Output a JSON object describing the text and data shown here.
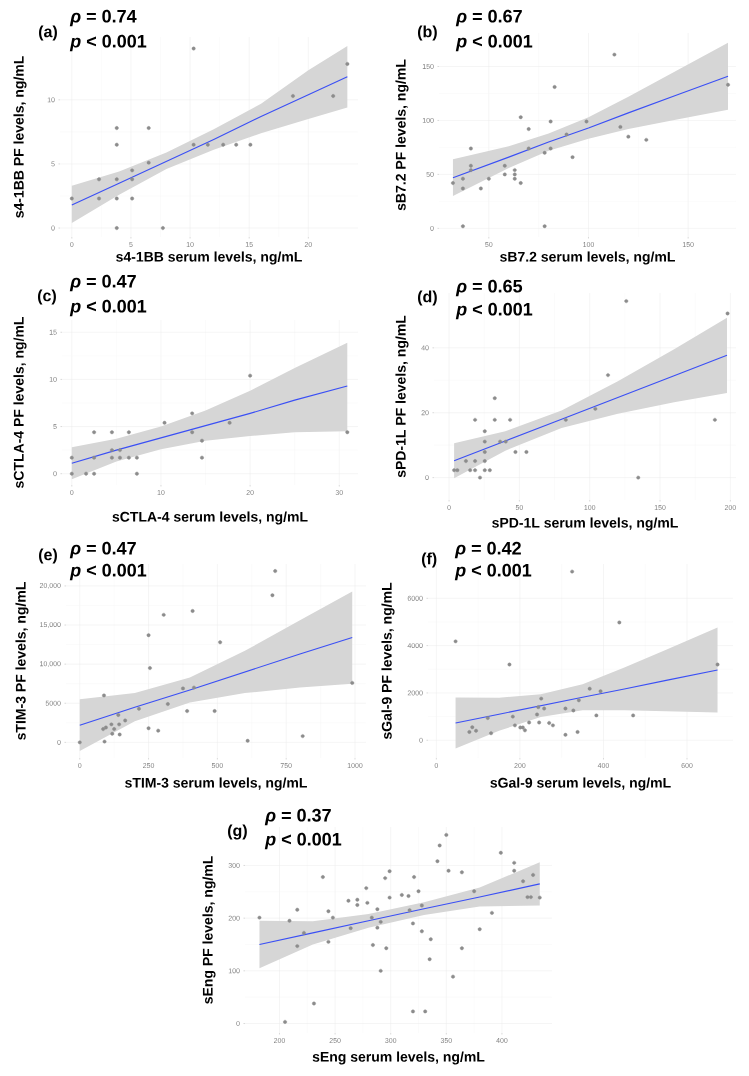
{
  "chart_data": [
    {
      "type": "scatter",
      "annotations": [
        "(a)",
        "*ρ* = 0.74",
        "*p* < 0.001"
      ],
      "xlabel": "s4-1BB serum levels, ng/mL",
      "ylabel": "s4-1BB PF levels, ng/mL",
      "xlim": [
        -1,
        24.2
      ],
      "ylim": [
        -0.7,
        14.9
      ],
      "xticks": [
        0,
        5,
        10,
        15,
        20
      ],
      "yticks": [
        0,
        5,
        10
      ],
      "grid": true,
      "series": [
        {
          "type": "scatter",
          "marker": "circle",
          "color": "#8c8c8c",
          "x": [
            0,
            2.3,
            2.3,
            3.8,
            3.8,
            3.8,
            3.8,
            3.8,
            5.1,
            5.1,
            5.1,
            6.5,
            6.5,
            7.7,
            10.3,
            10.3,
            11.5,
            12.8,
            13.9,
            15.1,
            18.7,
            22.1,
            23.3
          ],
          "values": [
            2.3,
            3.8,
            2.3,
            7.8,
            6.5,
            3.8,
            2.3,
            0,
            4.5,
            3.8,
            2.3,
            7.8,
            5.1,
            0,
            14.0,
            6.5,
            6.5,
            6.5,
            6.5,
            6.5,
            10.3,
            10.3,
            12.8
          ]
        },
        {
          "type": "line",
          "color": "#3a4ff5",
          "x": [
            0,
            4,
            8,
            12,
            16,
            20,
            23.3
          ],
          "values": [
            1.8,
            3.5,
            5.2,
            6.9,
            8.7,
            10.4,
            11.8
          ],
          "lower": [
            0.4,
            2.6,
            4.6,
            6.1,
            7.4,
            8.5,
            9.4
          ],
          "upper": [
            3.3,
            4.4,
            5.9,
            7.7,
            9.7,
            12.3,
            14.2
          ]
        }
      ]
    },
    {
      "type": "scatter",
      "annotations": [
        "(b)",
        "*ρ* = 0.67",
        "*p* < 0.001"
      ],
      "xlabel": "sB7.2 serum levels, ng/mL",
      "ylabel": "sB7.2 PF levels, ng/mL",
      "xlim": [
        25,
        174
      ],
      "ylim": [
        -8,
        181
      ],
      "xticks": [
        50,
        100,
        150
      ],
      "yticks": [
        0,
        50,
        100,
        150
      ],
      "grid": true,
      "series": [
        {
          "type": "scatter",
          "marker": "circle",
          "color": "#8c8c8c",
          "x": [
            32,
            37,
            37,
            37,
            41,
            41,
            41,
            46,
            50,
            58,
            58,
            63,
            63,
            63,
            66,
            66,
            70,
            70,
            78,
            78,
            81,
            81,
            83,
            89,
            92,
            99,
            113,
            116,
            120,
            129,
            170
          ],
          "values": [
            42,
            46,
            37,
            2,
            74,
            58,
            54,
            37,
            46,
            58,
            50,
            54,
            50,
            46,
            103,
            42,
            92,
            74,
            70,
            2,
            99,
            74,
            131,
            87,
            66,
            99,
            161,
            94,
            85,
            82,
            133
          ]
        },
        {
          "type": "line",
          "color": "#3a4ff5",
          "x": [
            32,
            60,
            80,
            100,
            120,
            145,
            170
          ],
          "values": [
            47,
            66,
            80,
            93,
            107,
            124,
            141
          ],
          "lower": [
            30,
            56,
            72,
            83,
            92,
            101,
            110
          ],
          "upper": [
            64,
            76,
            88,
            103,
            122,
            147,
            172
          ]
        }
      ]
    },
    {
      "type": "scatter",
      "annotations": [
        "(c)",
        "*ρ* = 0.47",
        "*p* < 0.001"
      ],
      "xlabel": "sCTLA-4 serum levels, ng/mL",
      "ylabel": "sCTLA-4 PF levels, ng/mL",
      "xlim": [
        -1.1,
        32.1
      ],
      "ylim": [
        -1.2,
        16.3
      ],
      "xticks": [
        0,
        10,
        20,
        30
      ],
      "yticks": [
        0,
        5,
        10,
        15
      ],
      "grid": true,
      "series": [
        {
          "type": "scatter",
          "marker": "circle",
          "color": "#8c8c8c",
          "x": [
            0,
            0,
            1.6,
            2.5,
            2.5,
            2.5,
            4.5,
            4.5,
            4.5,
            5.4,
            5.4,
            6.4,
            6.4,
            7.3,
            7.3,
            10.4,
            13.5,
            13.5,
            14.6,
            14.6,
            17.7,
            20,
            30.9
          ],
          "values": [
            1.7,
            0,
            0,
            0,
            1.7,
            4.4,
            4.4,
            2.5,
            1.7,
            2.5,
            1.7,
            4.4,
            1.7,
            1.7,
            0,
            5.4,
            6.4,
            4.4,
            3.5,
            1.7,
            5.4,
            10.4,
            4.4
          ]
        },
        {
          "type": "line",
          "color": "#3a4ff5",
          "x": [
            0,
            5,
            10,
            15,
            20,
            25,
            30.9
          ],
          "values": [
            1.1,
            2.5,
            3.8,
            5.1,
            6.4,
            7.8,
            9.3
          ],
          "lower": [
            -0.6,
            1.3,
            2.6,
            3.5,
            4.0,
            4.4,
            4.5
          ],
          "upper": [
            2.8,
            3.7,
            5.0,
            6.7,
            8.8,
            11.2,
            13.9
          ]
        }
      ]
    },
    {
      "type": "scatter",
      "annotations": [
        "(d)",
        "*ρ* = 0.65",
        "*p* < 0.001"
      ],
      "xlabel": "sPD-1L serum levels, ng/mL",
      "ylabel": "sPD-1L PF levels, ng/mL",
      "xlim": [
        -10.7,
        204
      ],
      "ylim": [
        -6.9,
        56.9
      ],
      "xticks": [
        0,
        50,
        100,
        150,
        200
      ],
      "yticks": [
        0,
        20,
        40
      ],
      "grid": true,
      "series": [
        {
          "type": "scatter",
          "marker": "circle",
          "color": "#8c8c8c",
          "x": [
            3.6,
            5.9,
            12,
            15,
            18.5,
            18.5,
            18.5,
            22,
            25.4,
            25.4,
            25.4,
            25.4,
            25.4,
            29,
            32.5,
            32.5,
            36.3,
            40.3,
            43.4,
            47.2,
            55,
            83,
            104,
            113,
            126,
            134.5,
            189,
            198
          ],
          "values": [
            2.3,
            2.3,
            5.1,
            2.3,
            17.8,
            5.1,
            2.3,
            0,
            2.3,
            5.1,
            7.9,
            11.1,
            14.3,
            2.3,
            24.5,
            17.8,
            11.1,
            11.1,
            17.8,
            7.9,
            7.9,
            17.8,
            21.2,
            31.6,
            54.4,
            0,
            17.8,
            50.6
          ]
        },
        {
          "type": "line",
          "color": "#3a4ff5",
          "x": [
            3.6,
            40,
            80,
            120,
            160,
            197.6
          ],
          "values": [
            5.2,
            11.3,
            18.0,
            24.7,
            31.4,
            37.7
          ],
          "lower": [
            -0.2,
            8.3,
            15.3,
            19.7,
            23.2,
            26.1
          ],
          "upper": [
            10.6,
            14.3,
            20.7,
            29.7,
            39.6,
            49.3
          ]
        }
      ]
    },
    {
      "type": "scatter",
      "annotations": [
        "(e)",
        "*ρ* = 0.47",
        "*p* < 0.001"
      ],
      "xlabel": "sTIM-3 serum levels, ng/mL",
      "ylabel": "sTIM-3 PF levels, ng/mL",
      "xlim": [
        -50,
        1040
      ],
      "ylim": [
        -2000,
        22800
      ],
      "xticks": [
        0,
        250,
        500,
        750,
        1000
      ],
      "yticks": [
        0,
        5000,
        {
          "value": 10000,
          "label": "10,000"
        },
        {
          "value": 15000,
          "label": "15,000"
        },
        {
          "value": 20000,
          "label": "20,000"
        }
      ],
      "grid": true,
      "series": [
        {
          "type": "scatter",
          "marker": "circle",
          "color": "#8c8c8c",
          "x": [
            0,
            88,
            85,
            90,
            95,
            115,
            118,
            125,
            140,
            143,
            145,
            165,
            215,
            250,
            255,
            250,
            285,
            305,
            320,
            375,
            390,
            410,
            415,
            490,
            510,
            610,
            700,
            710,
            810,
            990
          ],
          "values": [
            0,
            6000,
            1700,
            100,
            1900,
            2300,
            1100,
            1700,
            3500,
            2300,
            1000,
            2800,
            4300,
            13700,
            9500,
            1800,
            1500,
            16300,
            4900,
            6900,
            4000,
            16800,
            7000,
            4000,
            12800,
            200,
            18800,
            21900,
            800,
            7600
          ]
        },
        {
          "type": "line",
          "color": "#3a4ff5",
          "x": [
            0,
            200,
            400,
            600,
            800,
            990
          ],
          "values": [
            2200,
            4500,
            6700,
            9000,
            11300,
            13400
          ],
          "lower": [
            -1100,
            2700,
            5100,
            6300,
            7000,
            7500
          ],
          "upper": [
            5500,
            6300,
            8300,
            11700,
            15600,
            19300
          ]
        }
      ]
    },
    {
      "type": "scatter",
      "annotations": [
        "(f)",
        "*ρ* = 0.42",
        "*p* < 0.001"
      ],
      "xlabel": "sGal-9 serum levels, ng/mL",
      "ylabel": "sGal-9 PF levels, ng/mL",
      "xlim": [
        -20,
        710
      ],
      "ylim": [
        -750,
        7450
      ],
      "xticks": [
        0,
        200,
        400,
        600
      ],
      "yticks": [
        0,
        2000,
        4000,
        6000
      ],
      "grid": true,
      "series": [
        {
          "type": "scatter",
          "marker": "circle",
          "color": "#8c8c8c",
          "x": [
            46,
            79,
            86,
            95,
            131,
            123,
            175,
            183,
            188,
            201,
            207,
            212,
            222,
            241,
            244,
            251,
            246,
            258,
            270,
            279,
            309,
            309,
            325,
            328,
            338,
            341,
            367,
            383,
            393,
            438,
            471,
            673
          ],
          "values": [
            4180,
            350,
            550,
            400,
            300,
            940,
            3200,
            1000,
            630,
            540,
            540,
            420,
            750,
            1090,
            1400,
            1760,
            750,
            1340,
            730,
            630,
            230,
            1340,
            7130,
            1260,
            350,
            1690,
            2180,
            1050,
            2070,
            4980,
            1050,
            3200
          ]
        },
        {
          "type": "line",
          "color": "#3a4ff5",
          "x": [
            46,
            150,
            250,
            350,
            450,
            550,
            673
          ],
          "values": [
            730,
            1100,
            1460,
            1820,
            2170,
            2530,
            2970
          ],
          "lower": [
            -350,
            400,
            980,
            1270,
            1270,
            1230,
            1170
          ],
          "upper": [
            1810,
            1800,
            1940,
            2370,
            3070,
            3830,
            4770
          ]
        }
      ]
    },
    {
      "type": "scatter",
      "annotations": [
        "(g)",
        "*ρ* = 0.37",
        "*p* < 0.001"
      ],
      "xlabel": "sEng serum levels, ng/mL",
      "ylabel": "sEng PF levels, ng/mL",
      "xlim": [
        169,
        445
      ],
      "ylim": [
        -18,
        373
      ],
      "xticks": [
        200,
        250,
        300,
        350,
        400
      ],
      "yticks": [
        0,
        100,
        200,
        300
      ],
      "grid": true,
      "series": [
        {
          "type": "scatter",
          "marker": "circle",
          "color": "#8c8c8c",
          "x": [
            182,
            205,
            209,
            216,
            216,
            222,
            231,
            239,
            244,
            244,
            248,
            262,
            264,
            270,
            270,
            278,
            279,
            283,
            284,
            288,
            288,
            291,
            291,
            295,
            296,
            299,
            299,
            310,
            316,
            317,
            320,
            321,
            320,
            325,
            328,
            328,
            331,
            336,
            335,
            342,
            344,
            350,
            352,
            356,
            364,
            364,
            375,
            380,
            391,
            399,
            411,
            411,
            419,
            423,
            426,
            428,
            434
          ],
          "values": [
            201,
            3,
            195,
            216,
            147,
            172,
            38,
            278,
            213,
            155,
            201,
            233,
            181,
            235,
            225,
            257,
            229,
            201,
            149,
            217,
            182,
            193,
            100,
            276,
            143,
            289,
            239,
            244,
            242,
            215,
            190,
            278,
            23,
            251,
            224,
            175,
            23,
            160,
            122,
            308,
            338,
            358,
            290,
            89,
            287,
            143,
            251,
            179,
            210,
            324,
            305,
            290,
            270,
            240,
            240,
            282,
            239
          ]
        },
        {
          "type": "line",
          "color": "#3a4ff5",
          "x": [
            182,
            230,
            280,
            330,
            380,
            434
          ],
          "values": [
            150,
            172,
            195,
            218,
            240,
            265
          ],
          "lower": [
            105,
            150,
            182,
            206,
            222,
            224
          ],
          "upper": [
            195,
            194,
            208,
            230,
            258,
            306
          ]
        }
      ]
    }
  ]
}
